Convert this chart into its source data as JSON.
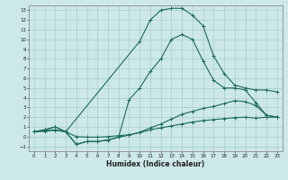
{
  "xlabel": "Humidex (Indice chaleur)",
  "bg_color": "#cde8e8",
  "grid_color": "#a8cccc",
  "line_color": "#1a6b5a",
  "xlim": [
    -0.5,
    23.5
  ],
  "ylim": [
    -1.5,
    13.5
  ],
  "xticks": [
    0,
    1,
    2,
    3,
    4,
    5,
    6,
    7,
    8,
    9,
    10,
    11,
    12,
    13,
    14,
    15,
    16,
    17,
    18,
    19,
    20,
    21,
    22,
    23
  ],
  "yticks": [
    -1,
    0,
    1,
    2,
    3,
    4,
    5,
    6,
    7,
    8,
    9,
    10,
    11,
    12,
    13
  ],
  "curve_main_x": [
    0,
    1,
    2,
    3,
    4,
    5,
    6,
    7,
    8,
    9,
    10,
    11,
    12,
    13,
    14,
    15,
    16,
    17,
    18,
    19,
    20,
    21,
    22,
    23
  ],
  "curve_main_y": [
    0.5,
    0.7,
    1.0,
    0.5,
    -0.8,
    -0.5,
    -0.5,
    -0.35,
    -0.05,
    3.8,
    5.0,
    6.7,
    8.0,
    10.0,
    10.5,
    10.0,
    7.8,
    5.8,
    5.0,
    5.0,
    4.8,
    3.5,
    2.2,
    2.0
  ],
  "curve2_x": [
    0,
    1,
    2,
    3,
    4,
    5,
    6,
    7,
    8,
    9,
    10,
    11,
    12,
    13,
    14,
    15,
    16,
    17,
    18,
    19,
    20,
    21,
    22,
    23
  ],
  "curve2_y": [
    0.5,
    0.7,
    1.0,
    0.5,
    -0.8,
    -0.5,
    -0.5,
    -0.35,
    -0.05,
    0.15,
    0.45,
    0.9,
    1.3,
    1.8,
    2.3,
    2.6,
    2.9,
    3.1,
    3.4,
    3.7,
    3.6,
    3.2,
    2.2,
    2.0
  ],
  "curve3_x": [
    0,
    1,
    2,
    3,
    4,
    5,
    6,
    7,
    8,
    9,
    10,
    11,
    12,
    13,
    14,
    15,
    16,
    17,
    18,
    19,
    20,
    21,
    22,
    23
  ],
  "curve3_y": [
    0.5,
    0.55,
    0.65,
    0.5,
    0.0,
    -0.05,
    -0.05,
    0.0,
    0.1,
    0.2,
    0.4,
    0.7,
    0.9,
    1.1,
    1.3,
    1.5,
    1.65,
    1.75,
    1.85,
    1.95,
    2.0,
    1.9,
    2.0,
    2.0
  ],
  "curve_peak_x": [
    0,
    1,
    2,
    3,
    10,
    11,
    12,
    13,
    14,
    15,
    16,
    17,
    18,
    19,
    20,
    21,
    22,
    23
  ],
  "curve_peak_y": [
    0.5,
    0.6,
    0.7,
    0.5,
    9.8,
    12.0,
    13.0,
    13.2,
    13.2,
    12.5,
    11.4,
    8.3,
    6.5,
    5.3,
    5.0,
    4.8,
    4.8,
    4.6
  ]
}
